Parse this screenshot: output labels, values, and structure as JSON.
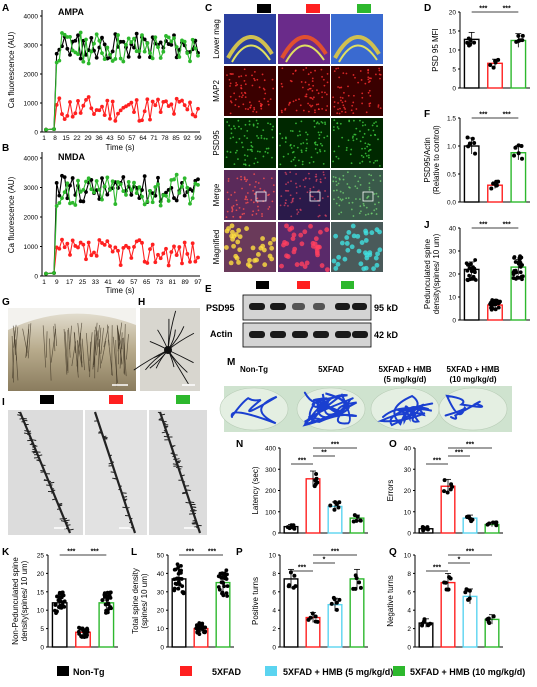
{
  "colors": {
    "nontg": "#000000",
    "fxad": "#ff2020",
    "hmb5": "#5bd4f0",
    "hmb10": "#2db82d"
  },
  "panelA": {
    "letter": "A",
    "label": "AMPA",
    "ylabel": "Ca fluorescence (AU)",
    "xlabel": "Time (s)",
    "yticks": [
      "0",
      "1000",
      "2000",
      "3000",
      "4000"
    ],
    "xticks": [
      "1",
      "8",
      "15",
      "22",
      "29",
      "36",
      "43",
      "50",
      "57",
      "64",
      "71",
      "78",
      "85",
      "92",
      "99"
    ]
  },
  "panelB": {
    "letter": "B",
    "label": "NMDA",
    "ylabel": "Ca fluorescence (AU)",
    "xlabel": "Time (s)",
    "yticks": [
      "0",
      "1000",
      "2000",
      "3000",
      "4000"
    ],
    "xticks": [
      "1",
      "9",
      "17",
      "25",
      "33",
      "41",
      "49",
      "57",
      "65",
      "73",
      "81",
      "89",
      "97"
    ]
  },
  "panelC": {
    "letter": "C",
    "rows": [
      "Lower mag",
      "MAP2",
      "PSD95",
      "Merge",
      "Magnified"
    ]
  },
  "panelD": {
    "letter": "D",
    "ylabel": "PSD 95 MFI",
    "yticks": [
      "0",
      "5",
      "10",
      "15",
      "20"
    ],
    "sig": [
      "***",
      "***"
    ]
  },
  "panelE": {
    "letter": "E",
    "bands": [
      "PSD95",
      "Actin"
    ],
    "sizes": [
      "95 kD",
      "42 kD"
    ]
  },
  "panelF": {
    "letter": "F",
    "ylabel": "PSD95/Actin",
    "ylabel2": "(Relative to control)",
    "yticks": [
      "0.0",
      "0.5",
      "1.0",
      "1.5"
    ],
    "sig": [
      "***",
      "***"
    ]
  },
  "panelJ": {
    "letter": "J",
    "ylabel": "Pedunculated spine",
    "ylabel2": "density(spines/ 10 um)",
    "yticks": [
      "0",
      "10",
      "20",
      "30",
      "40"
    ],
    "sig": [
      "***",
      "***"
    ]
  },
  "panelG": {
    "letter": "G"
  },
  "panelH": {
    "letter": "H"
  },
  "panelI": {
    "letter": "I"
  },
  "panelM": {
    "letter": "M",
    "groups": [
      "Non-Tg",
      "5XFAD",
      "5XFAD + HMB",
      "5XFAD + HMB"
    ],
    "doses": [
      "",
      "",
      "(5 mg/kg/d)",
      "(10 mg/kg/d)"
    ]
  },
  "panelN": {
    "letter": "N",
    "ylabel": "Latency (sec)",
    "yticks": [
      "0",
      "100",
      "200",
      "300",
      "400"
    ],
    "sig": [
      "***",
      "**",
      "***"
    ]
  },
  "panelO": {
    "letter": "O",
    "ylabel": "Errors",
    "yticks": [
      "0",
      "10",
      "20",
      "30",
      "40"
    ],
    "sig": [
      "***",
      "***",
      "***"
    ]
  },
  "panelK": {
    "letter": "K",
    "ylabel": "Non-Pedunculated spine",
    "ylabel2": "density(spines/ 10 um)",
    "yticks": [
      "0",
      "5",
      "10",
      "15",
      "20",
      "25"
    ],
    "sig": [
      "***",
      "***"
    ]
  },
  "panelL": {
    "letter": "L",
    "ylabel": "Total spine density",
    "ylabel2": "(spines/ 10 um)",
    "yticks": [
      "0",
      "10",
      "20",
      "30",
      "40",
      "50"
    ],
    "sig": [
      "***",
      "***"
    ]
  },
  "panelP": {
    "letter": "P",
    "ylabel": "Positive turns",
    "yticks": [
      "0",
      "2",
      "4",
      "6",
      "8",
      "10"
    ],
    "sig": [
      "***",
      "*",
      "***"
    ]
  },
  "panelQ": {
    "letter": "Q",
    "ylabel": "Negative turns",
    "yticks": [
      "0",
      "2",
      "4",
      "6",
      "8",
      "10"
    ],
    "sig": [
      "***",
      "*",
      "***"
    ]
  },
  "legend": [
    "Non-Tg",
    "5XFAD",
    "5XFAD + HMB (5 mg/kg/d)",
    "5XFAD + HMB (10 mg/kg/d)"
  ],
  "chart_data": [
    {
      "panel": "D",
      "type": "bar",
      "categories": [
        "Non-Tg",
        "5XFAD",
        "5XFAD + HMB (10 mg/kg/d)"
      ],
      "values": [
        12.8,
        6.5,
        12.5
      ],
      "ylim": [
        0,
        20
      ]
    },
    {
      "panel": "F",
      "type": "bar",
      "categories": [
        "Non-Tg",
        "5XFAD",
        "5XFAD + HMB (10 mg/kg/d)"
      ],
      "values": [
        1.0,
        0.3,
        0.88
      ],
      "ylim": [
        0,
        1.5
      ]
    },
    {
      "panel": "J",
      "type": "bar",
      "categories": [
        "Non-Tg",
        "5XFAD",
        "5XFAD + HMB (10 mg/kg/d)"
      ],
      "values": [
        22,
        6.5,
        23
      ],
      "ylim": [
        0,
        40
      ]
    },
    {
      "panel": "N",
      "type": "bar",
      "categories": [
        "Non-Tg",
        "5XFAD",
        "5XFAD + HMB (5 mg/kg/d)",
        "5XFAD + HMB (10 mg/kg/d)"
      ],
      "values": [
        30,
        255,
        125,
        70
      ],
      "ylim": [
        0,
        400
      ]
    },
    {
      "panel": "O",
      "type": "bar",
      "categories": [
        "Non-Tg",
        "5XFAD",
        "5XFAD + HMB (5 mg/kg/d)",
        "5XFAD + HMB (10 mg/kg/d)"
      ],
      "values": [
        2,
        22,
        7,
        4
      ],
      "ylim": [
        0,
        40
      ]
    },
    {
      "panel": "K",
      "type": "bar",
      "categories": [
        "Non-Tg",
        "5XFAD",
        "5XFAD + HMB (10 mg/kg/d)"
      ],
      "values": [
        12,
        4,
        12
      ],
      "ylim": [
        0,
        25
      ]
    },
    {
      "panel": "L",
      "type": "bar",
      "categories": [
        "Non-Tg",
        "5XFAD",
        "5XFAD + HMB (10 mg/kg/d)"
      ],
      "values": [
        37,
        10,
        35
      ],
      "ylim": [
        0,
        50
      ]
    },
    {
      "panel": "P",
      "type": "bar",
      "categories": [
        "Non-Tg",
        "5XFAD",
        "5XFAD + HMB (5 mg/kg/d)",
        "5XFAD + HMB (10 mg/kg/d)"
      ],
      "values": [
        7.4,
        3.2,
        4.6,
        7.4
      ],
      "ylim": [
        0,
        10
      ]
    },
    {
      "panel": "Q",
      "type": "bar",
      "categories": [
        "Non-Tg",
        "5XFAD",
        "5XFAD + HMB (5 mg/kg/d)",
        "5XFAD + HMB (10 mg/kg/d)"
      ],
      "values": [
        2.6,
        7,
        5.5,
        3
      ],
      "ylim": [
        0,
        10
      ]
    }
  ]
}
